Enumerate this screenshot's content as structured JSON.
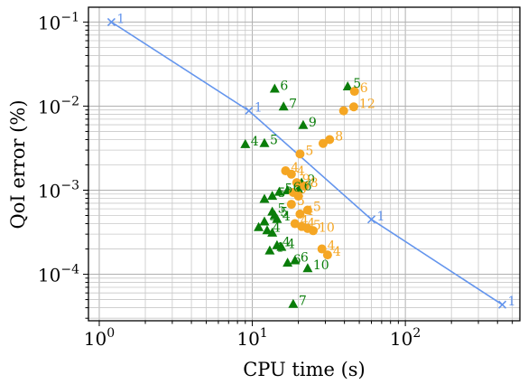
{
  "chart_data": {
    "type": "scatter",
    "title": "",
    "xlabel": "CPU time (s)",
    "ylabel": "QoI error (%)",
    "xscale": "log",
    "yscale": "log",
    "xlim": [
      0.85,
      560
    ],
    "ylim": [
      2.8e-05,
      0.15
    ],
    "grid": "major and minor",
    "legend": "none",
    "x_ticks": [
      {
        "value": 1,
        "base": "10",
        "exp": "0"
      },
      {
        "value": 10,
        "base": "10",
        "exp": "1"
      },
      {
        "value": 100,
        "base": "10",
        "exp": "2"
      }
    ],
    "y_ticks": [
      {
        "value": 0.0001,
        "base": "10",
        "exp": "−4"
      },
      {
        "value": 0.001,
        "base": "10",
        "exp": "−3"
      },
      {
        "value": 0.01,
        "base": "10",
        "exp": "−2"
      },
      {
        "value": 0.1,
        "base": "10",
        "exp": "−1"
      }
    ],
    "series": [
      {
        "marker": "x",
        "color": "#6495ed",
        "line": true,
        "points": [
          {
            "x": 1.2,
            "y": 0.1,
            "label": "1"
          },
          {
            "x": 9.5,
            "y": 0.0088,
            "label": "1"
          },
          {
            "x": 60,
            "y": 0.00045,
            "label": "1"
          },
          {
            "x": 430,
            "y": 4.35e-05,
            "label": "1"
          }
        ]
      },
      {
        "marker": "triangle",
        "color": "#0a7d0a",
        "line": false,
        "points": [
          {
            "x": 14,
            "y": 0.016,
            "label": "6"
          },
          {
            "x": 16,
            "y": 0.0098,
            "label": "7"
          },
          {
            "x": 42,
            "y": 0.017,
            "label": "5"
          },
          {
            "x": 21.5,
            "y": 0.0059,
            "label": "9"
          },
          {
            "x": 9,
            "y": 0.0035,
            "label": "4"
          },
          {
            "x": 12,
            "y": 0.0036,
            "label": "5"
          },
          {
            "x": 21,
            "y": 0.00122,
            "label": "9"
          },
          {
            "x": 20,
            "y": 0.00102,
            "label": "6"
          },
          {
            "x": 17,
            "y": 0.00099,
            "label": "6"
          },
          {
            "x": 15,
            "y": 0.00095,
            "label": "5"
          },
          {
            "x": 13.5,
            "y": 0.00085,
            "label": "5"
          },
          {
            "x": 12,
            "y": 0.00078,
            "label": ""
          },
          {
            "x": 13.5,
            "y": 0.00055,
            "label": "5"
          },
          {
            "x": 14,
            "y": 0.0005,
            "label": "5"
          },
          {
            "x": 14.5,
            "y": 0.00045,
            "label": "4"
          },
          {
            "x": 12,
            "y": 0.00042,
            "label": "4"
          },
          {
            "x": 11,
            "y": 0.00036,
            "label": ""
          },
          {
            "x": 12.5,
            "y": 0.00033,
            "label": "4"
          },
          {
            "x": 13.5,
            "y": 0.00031,
            "label": ""
          },
          {
            "x": 14.5,
            "y": 0.00022,
            "label": "4"
          },
          {
            "x": 15.5,
            "y": 0.00021,
            "label": "4"
          },
          {
            "x": 13,
            "y": 0.00019,
            "label": "4"
          },
          {
            "x": 19,
            "y": 0.000145,
            "label": "6"
          },
          {
            "x": 17,
            "y": 0.000136,
            "label": "6"
          },
          {
            "x": 23,
            "y": 0.000117,
            "label": "10"
          },
          {
            "x": 18.5,
            "y": 4.4e-05,
            "label": "7"
          }
        ]
      },
      {
        "marker": "circle",
        "color": "#f5a623",
        "line": false,
        "points": [
          {
            "x": 46.5,
            "y": 0.015,
            "label": "6"
          },
          {
            "x": 46,
            "y": 0.0098,
            "label": "12"
          },
          {
            "x": 39.5,
            "y": 0.0088,
            "label": ""
          },
          {
            "x": 32,
            "y": 0.004,
            "label": "8"
          },
          {
            "x": 29,
            "y": 0.0036,
            "label": ""
          },
          {
            "x": 20.5,
            "y": 0.0027,
            "label": "5"
          },
          {
            "x": 16.5,
            "y": 0.0017,
            "label": "4"
          },
          {
            "x": 18,
            "y": 0.00155,
            "label": "4"
          },
          {
            "x": 19.5,
            "y": 0.00123,
            "label": "9"
          },
          {
            "x": 22,
            "y": 0.00112,
            "label": "8"
          },
          {
            "x": 18.5,
            "y": 0.00094,
            "label": "5"
          },
          {
            "x": 20,
            "y": 0.00085,
            "label": ""
          },
          {
            "x": 18,
            "y": 0.00068,
            "label": "5"
          },
          {
            "x": 23,
            "y": 0.00058,
            "label": "5"
          },
          {
            "x": 20.5,
            "y": 0.00052,
            "label": "4"
          },
          {
            "x": 19,
            "y": 0.0004,
            "label": "4"
          },
          {
            "x": 21,
            "y": 0.00037,
            "label": "4"
          },
          {
            "x": 23,
            "y": 0.00035,
            "label": "5"
          },
          {
            "x": 25,
            "y": 0.00033,
            "label": "10"
          },
          {
            "x": 28.5,
            "y": 0.0002,
            "label": "4"
          },
          {
            "x": 31,
            "y": 0.00017,
            "label": "4"
          }
        ]
      }
    ]
  }
}
